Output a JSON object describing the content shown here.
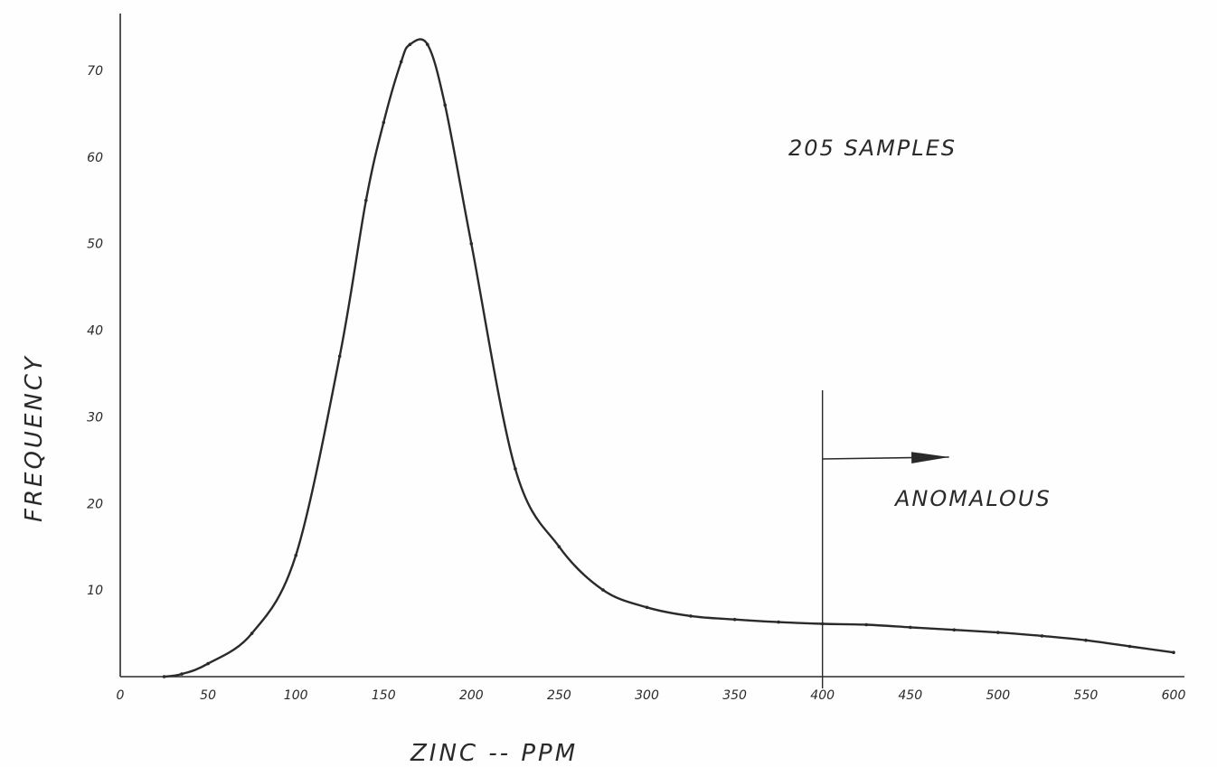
{
  "chart_data": {
    "type": "line",
    "title": "",
    "xlabel": "ZINC -- PPM",
    "ylabel": "FREQUENCY",
    "xlim": [
      0,
      600
    ],
    "ylim": [
      0,
      75
    ],
    "x_ticks": [
      "0",
      "50",
      "100",
      "150",
      "200",
      "250",
      "300",
      "350",
      "400",
      "450",
      "500",
      "550",
      "600"
    ],
    "y_ticks": [
      "10",
      "20",
      "30",
      "40",
      "50",
      "60",
      "70"
    ],
    "grid": false,
    "series": [
      {
        "color": "#2a2a2a",
        "x": [
          25,
          35,
          50,
          75,
          100,
          125,
          140,
          150,
          160,
          165,
          175,
          185,
          200,
          225,
          250,
          275,
          300,
          325,
          350,
          375,
          400,
          425,
          450,
          475,
          500,
          525,
          550,
          575,
          600
        ],
        "y": [
          0,
          0.3,
          1.5,
          5,
          14,
          37,
          55,
          64,
          71,
          73,
          73,
          66,
          50,
          24,
          15,
          10,
          8,
          7,
          6.6,
          6.3,
          6.1,
          6.0,
          5.7,
          5.4,
          5.1,
          4.7,
          4.2,
          3.5,
          2.8
        ]
      }
    ],
    "annotations": [
      {
        "text": "205 SAMPLES"
      },
      {
        "text": "ANOMALOUS"
      }
    ],
    "threshold": {
      "x": 400,
      "direction": "right"
    }
  }
}
